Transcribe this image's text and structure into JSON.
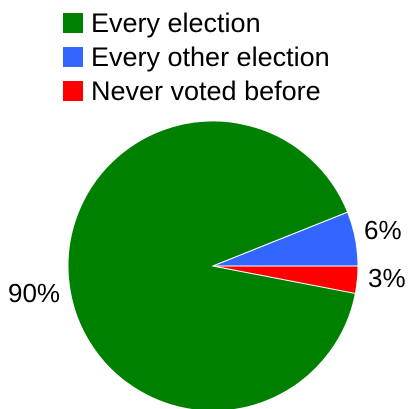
{
  "chart_data": {
    "type": "pie",
    "slices": [
      {
        "label": "Every election",
        "value": 90,
        "value_label": "90%",
        "color": "#008000"
      },
      {
        "label": "Every other election",
        "value": 6,
        "value_label": "6%",
        "color": "#3366ff"
      },
      {
        "label": "Never voted before",
        "value": 3,
        "value_label": "3%",
        "color": "#ff0000"
      }
    ],
    "legend_position": "top-left"
  }
}
